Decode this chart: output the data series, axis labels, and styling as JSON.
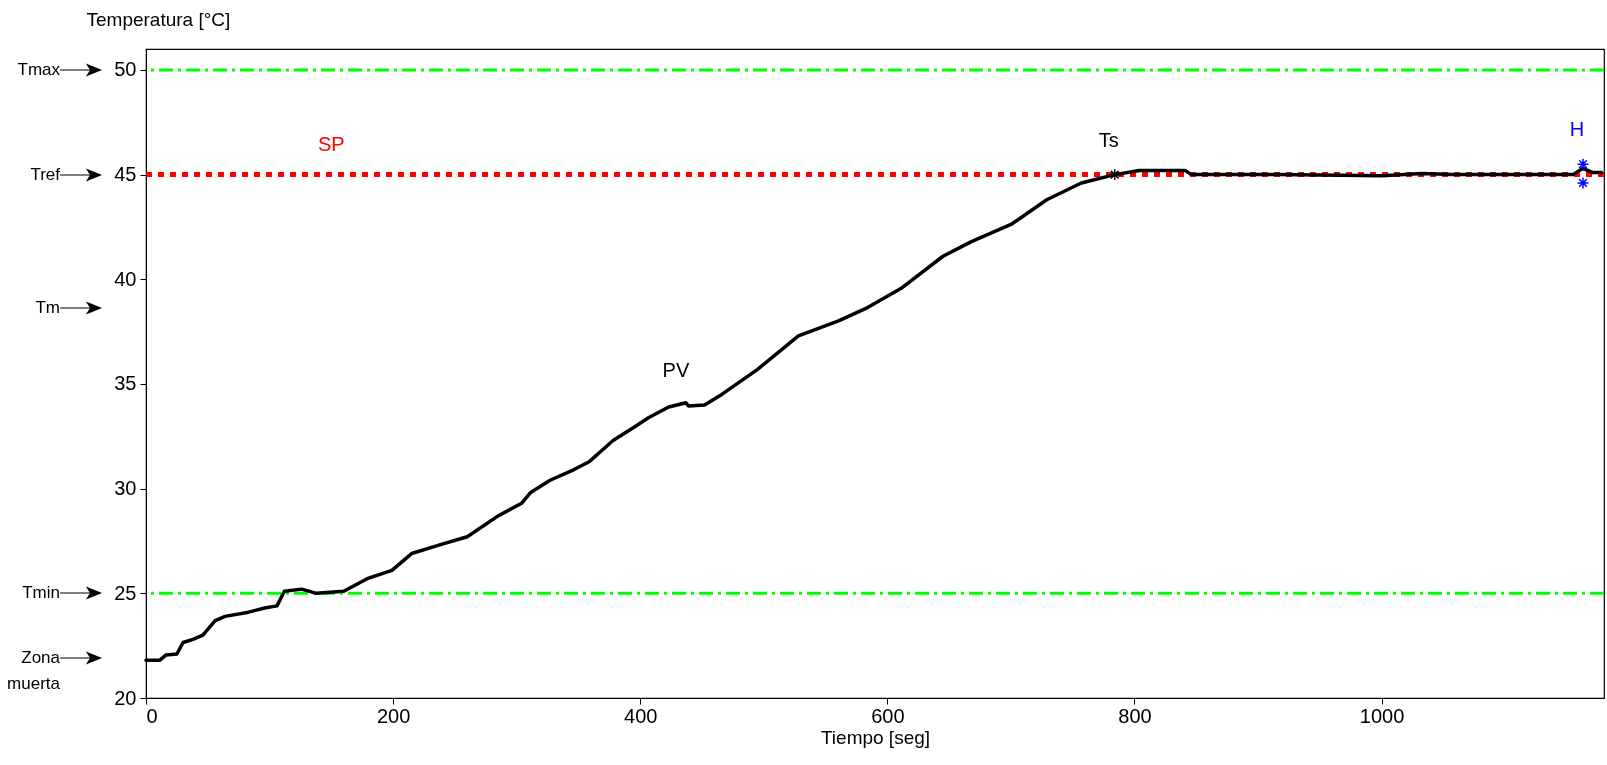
{
  "chart_data": {
    "type": "line",
    "xlabel": "Tiempo [seg]",
    "ylabel": "Temperatura [°C]",
    "xlim": [
      0,
      1180
    ],
    "ylim": [
      20,
      51
    ],
    "xticks": [
      0,
      200,
      400,
      600,
      800,
      1000
    ],
    "yticks": [
      20,
      25,
      30,
      35,
      40,
      45,
      50
    ],
    "grid": false,
    "series": [
      {
        "name": "PV",
        "color": "#000000",
        "line_style": "solid",
        "x": [
          0,
          11,
          16,
          25,
          30,
          38,
          46,
          56,
          64,
          83,
          96,
          106,
          112,
          126,
          138,
          160,
          179,
          199,
          215,
          237,
          260,
          285,
          304,
          311,
          327,
          346,
          359,
          378,
          394,
          407,
          423,
          437,
          439,
          452,
          466,
          495,
          528,
          560,
          584,
          612,
          645,
          668,
          701,
          729,
          757,
          784,
          804,
          841,
          846,
          916,
          1000,
          1033,
          1057,
          1155,
          1163,
          1171,
          1178
        ],
        "values": [
          21.8,
          21.8,
          22.05,
          22.1,
          22.65,
          22.8,
          23.0,
          23.7,
          23.9,
          24.1,
          24.3,
          24.4,
          25.1,
          25.2,
          25.0,
          25.1,
          25.7,
          26.1,
          26.9,
          27.3,
          27.7,
          28.7,
          29.3,
          29.8,
          30.4,
          30.9,
          31.3,
          32.3,
          32.9,
          33.4,
          33.9,
          34.1,
          33.95,
          34.0,
          34.5,
          35.7,
          37.3,
          38.0,
          38.65,
          39.6,
          41.1,
          41.8,
          42.65,
          43.8,
          44.6,
          45.0,
          45.2,
          45.2,
          45.0,
          45.0,
          44.95,
          45.05,
          45.0,
          45.0,
          45.3,
          45.1,
          45.1
        ]
      },
      {
        "name": "Ts",
        "type": "scatter",
        "color": "#000000",
        "marker": "cross",
        "x": [
          784
        ],
        "values": [
          45.0
        ]
      },
      {
        "name": "H",
        "type": "scatter",
        "color": "#0000ff",
        "marker": "cross",
        "x": [
          1163,
          1163
        ],
        "values": [
          45.5,
          44.6
        ]
      }
    ],
    "ref_lines": [
      {
        "axis": "y",
        "value": 50,
        "color": "#00ff00",
        "line_style": "dashed"
      },
      {
        "axis": "y",
        "value": 45,
        "color": "#ff0000",
        "line_style": "dotted"
      },
      {
        "axis": "y",
        "value": 25,
        "color": "#00ff00",
        "line_style": "dashed"
      }
    ],
    "annotations": [
      {
        "text": "SP",
        "x": 150,
        "y": 45
      },
      "Tmax",
      "Tref",
      "Tm",
      "Tmin",
      "Zona muerta"
    ]
  }
}
